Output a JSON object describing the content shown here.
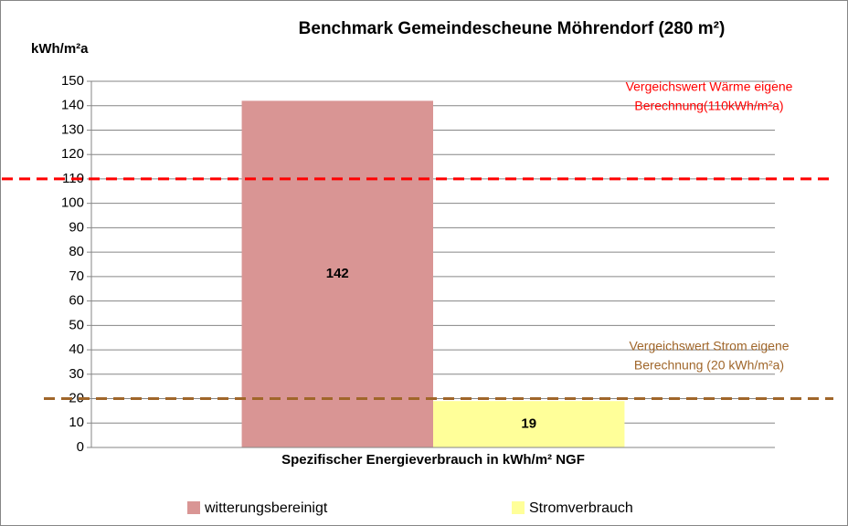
{
  "chart_data": {
    "type": "bar",
    "title": "Benchmark Gemeindescheune Möhrendorf (280 m²)",
    "y_label": "kWh/m²a",
    "categories": [
      "Spezifischer Energieverbrauch in kWh/m² NGF"
    ],
    "series": [
      {
        "name": "witterungsbereinigt",
        "color": "#d99594",
        "values": [
          142
        ]
      },
      {
        "name": "Stromverbrauch",
        "color": "#ffff99",
        "values": [
          19
        ]
      }
    ],
    "ylim": [
      0,
      150
    ],
    "yticks": [
      0,
      10,
      20,
      30,
      40,
      50,
      60,
      70,
      80,
      90,
      100,
      110,
      120,
      130,
      140,
      150
    ],
    "grid": true,
    "legend": "bottom",
    "reference_lines": [
      {
        "value": 110,
        "color": "#ff0000",
        "label": [
          "Vergeichswert Wärme eigene",
          "Berechnung(110kWh/m²a)"
        ]
      },
      {
        "value": 20,
        "color": "#a0662a",
        "label": [
          "Vergeichswert Strom eigene",
          "Berechnung (20 kWh/m²a)"
        ]
      }
    ]
  }
}
